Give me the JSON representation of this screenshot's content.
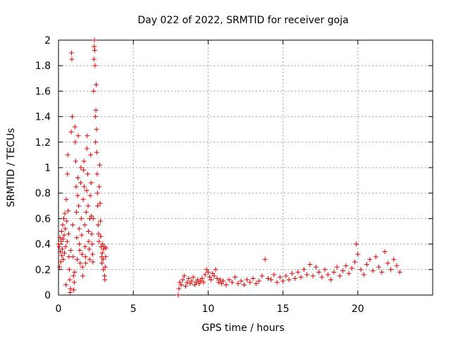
{
  "chart_data": {
    "type": "scatter",
    "title": "Day 022 of 2022, SRMTID for receiver goja",
    "xlabel": "GPS time / hours",
    "ylabel": "SRMTID / TECUs",
    "xlim": [
      0,
      25
    ],
    "ylim": [
      0,
      2
    ],
    "xticks": [
      0,
      5,
      10,
      15,
      20
    ],
    "yticks": [
      0,
      0.2,
      0.4,
      0.6,
      0.8,
      1,
      1.2,
      1.4,
      1.6,
      1.8,
      2
    ],
    "xtick_labels": [
      "0",
      "5",
      "10",
      "15",
      "20"
    ],
    "ytick_labels": [
      "0",
      "0.2",
      "0.4",
      "0.6",
      "0.8",
      "1",
      "1.2",
      "1.4",
      "1.6",
      "1.8",
      "2"
    ],
    "grid": true,
    "marker": "+",
    "color": "#e00000",
    "series": [
      {
        "name": "SRMTID",
        "points": [
          [
            0.0,
            0.4
          ],
          [
            0.05,
            0.38
          ],
          [
            0.08,
            0.22
          ],
          [
            0.1,
            0.45
          ],
          [
            0.12,
            0.34
          ],
          [
            0.15,
            0.26
          ],
          [
            0.18,
            0.42
          ],
          [
            0.2,
            0.5
          ],
          [
            0.22,
            0.31
          ],
          [
            0.25,
            0.36
          ],
          [
            0.28,
            0.55
          ],
          [
            0.3,
            0.44
          ],
          [
            0.32,
            0.28
          ],
          [
            0.35,
            0.6
          ],
          [
            0.38,
            0.47
          ],
          [
            0.4,
            0.33
          ],
          [
            0.42,
            0.64
          ],
          [
            0.45,
            0.52
          ],
          [
            0.48,
            0.38
          ],
          [
            0.5,
            0.08
          ],
          [
            0.52,
            0.75
          ],
          [
            0.55,
            0.58
          ],
          [
            0.58,
            0.42
          ],
          [
            0.6,
            0.95
          ],
          [
            0.62,
            1.1
          ],
          [
            0.65,
            0.66
          ],
          [
            0.68,
            0.48
          ],
          [
            0.7,
            0.3
          ],
          [
            0.72,
            0.2
          ],
          [
            0.75,
            0.12
          ],
          [
            0.78,
            0.02
          ],
          [
            0.8,
            0.05
          ],
          [
            0.82,
            0.35
          ],
          [
            0.85,
            1.28
          ],
          [
            0.87,
            1.9
          ],
          [
            0.89,
            1.85
          ],
          [
            0.92,
            1.4
          ],
          [
            0.95,
            0.55
          ],
          [
            0.98,
            0.3
          ],
          [
            1.0,
            0.15
          ],
          [
            1.02,
            0.04
          ],
          [
            1.05,
            0.1
          ],
          [
            1.08,
            0.18
          ],
          [
            1.1,
            1.32
          ],
          [
            1.12,
            1.2
          ],
          [
            1.15,
            1.05
          ],
          [
            1.18,
            0.85
          ],
          [
            1.2,
            0.65
          ],
          [
            1.22,
            0.45
          ],
          [
            1.25,
            0.28
          ],
          [
            1.28,
            0.78
          ],
          [
            1.3,
            0.92
          ],
          [
            1.32,
            1.25
          ],
          [
            1.35,
            0.7
          ],
          [
            1.38,
            0.52
          ],
          [
            1.4,
            0.4
          ],
          [
            1.42,
            0.35
          ],
          [
            1.45,
            0.25
          ],
          [
            1.48,
            0.88
          ],
          [
            1.5,
            1.0
          ],
          [
            1.52,
            0.6
          ],
          [
            1.55,
            0.47
          ],
          [
            1.58,
            0.32
          ],
          [
            1.6,
            0.22
          ],
          [
            1.62,
            0.15
          ],
          [
            1.65,
            0.75
          ],
          [
            1.68,
            0.98
          ],
          [
            1.7,
            1.05
          ],
          [
            1.72,
            0.85
          ],
          [
            1.75,
            0.55
          ],
          [
            1.78,
            0.38
          ],
          [
            1.8,
            0.3
          ],
          [
            1.82,
            0.25
          ],
          [
            1.85,
            0.65
          ],
          [
            1.88,
            0.82
          ],
          [
            1.9,
            1.15
          ],
          [
            1.92,
            1.25
          ],
          [
            1.95,
            0.95
          ],
          [
            1.98,
            0.7
          ],
          [
            2.0,
            0.5
          ],
          [
            2.02,
            0.42
          ],
          [
            2.05,
            0.36
          ],
          [
            2.08,
            0.28
          ],
          [
            2.1,
            0.6
          ],
          [
            2.12,
            0.78
          ],
          [
            2.15,
            1.1
          ],
          [
            2.18,
            0.88
          ],
          [
            2.2,
            0.62
          ],
          [
            2.22,
            0.48
          ],
          [
            2.25,
            0.4
          ],
          [
            2.28,
            0.32
          ],
          [
            2.3,
            0.26
          ],
          [
            2.32,
            0.6
          ],
          [
            2.35,
            1.6
          ],
          [
            2.37,
            1.85
          ],
          [
            2.39,
            1.95
          ],
          [
            2.4,
            2.0
          ],
          [
            2.42,
            1.92
          ],
          [
            2.44,
            1.8
          ],
          [
            2.46,
            1.4
          ],
          [
            2.48,
            1.2
          ],
          [
            2.5,
            1.45
          ],
          [
            2.52,
            1.65
          ],
          [
            2.54,
            1.3
          ],
          [
            2.56,
            1.12
          ],
          [
            2.58,
            0.95
          ],
          [
            2.6,
            0.8
          ],
          [
            2.62,
            0.7
          ],
          [
            2.65,
            0.55
          ],
          [
            2.68,
            0.48
          ],
          [
            2.7,
            0.42
          ],
          [
            2.72,
            0.85
          ],
          [
            2.75,
            1.02
          ],
          [
            2.78,
            0.72
          ],
          [
            2.8,
            0.58
          ],
          [
            2.82,
            0.46
          ],
          [
            2.85,
            0.38
          ],
          [
            2.88,
            0.3
          ],
          [
            2.9,
            0.25
          ],
          [
            2.92,
            0.33
          ],
          [
            2.95,
            0.4
          ],
          [
            2.98,
            0.28
          ],
          [
            3.0,
            0.2
          ],
          [
            3.02,
            0.36
          ],
          [
            3.05,
            0.38
          ],
          [
            3.08,
            0.15
          ],
          [
            3.1,
            0.12
          ],
          [
            3.12,
            0.22
          ],
          [
            3.15,
            0.3
          ],
          [
            3.18,
            0.37
          ],
          [
            8.0,
            0.0
          ],
          [
            8.05,
            0.05
          ],
          [
            8.1,
            0.1
          ],
          [
            8.2,
            0.08
          ],
          [
            8.3,
            0.12
          ],
          [
            8.4,
            0.15
          ],
          [
            8.5,
            0.07
          ],
          [
            8.6,
            0.1
          ],
          [
            8.7,
            0.13
          ],
          [
            8.8,
            0.09
          ],
          [
            8.9,
            0.11
          ],
          [
            9.0,
            0.14
          ],
          [
            9.1,
            0.08
          ],
          [
            9.2,
            0.1
          ],
          [
            9.3,
            0.12
          ],
          [
            9.4,
            0.09
          ],
          [
            9.5,
            0.11
          ],
          [
            9.6,
            0.13
          ],
          [
            9.7,
            0.1
          ],
          [
            9.8,
            0.16
          ],
          [
            9.9,
            0.2
          ],
          [
            10.0,
            0.18
          ],
          [
            10.1,
            0.14
          ],
          [
            10.2,
            0.12
          ],
          [
            10.3,
            0.17
          ],
          [
            10.4,
            0.15
          ],
          [
            10.5,
            0.2
          ],
          [
            10.6,
            0.13
          ],
          [
            10.7,
            0.1
          ],
          [
            10.8,
            0.12
          ],
          [
            10.9,
            0.09
          ],
          [
            11.0,
            0.11
          ],
          [
            11.2,
            0.08
          ],
          [
            11.4,
            0.12
          ],
          [
            11.6,
            0.1
          ],
          [
            11.8,
            0.14
          ],
          [
            12.0,
            0.09
          ],
          [
            12.2,
            0.11
          ],
          [
            12.4,
            0.08
          ],
          [
            12.6,
            0.12
          ],
          [
            12.8,
            0.1
          ],
          [
            13.0,
            0.13
          ],
          [
            13.2,
            0.09
          ],
          [
            13.4,
            0.11
          ],
          [
            13.6,
            0.15
          ],
          [
            13.8,
            0.28
          ],
          [
            14.0,
            0.13
          ],
          [
            14.2,
            0.12
          ],
          [
            14.4,
            0.16
          ],
          [
            14.6,
            0.1
          ],
          [
            14.8,
            0.14
          ],
          [
            15.0,
            0.11
          ],
          [
            15.2,
            0.15
          ],
          [
            15.4,
            0.12
          ],
          [
            15.6,
            0.17
          ],
          [
            15.8,
            0.13
          ],
          [
            16.0,
            0.18
          ],
          [
            16.2,
            0.14
          ],
          [
            16.4,
            0.2
          ],
          [
            16.6,
            0.16
          ],
          [
            16.8,
            0.24
          ],
          [
            17.0,
            0.15
          ],
          [
            17.2,
            0.22
          ],
          [
            17.4,
            0.18
          ],
          [
            17.6,
            0.14
          ],
          [
            17.8,
            0.2
          ],
          [
            18.0,
            0.16
          ],
          [
            18.2,
            0.12
          ],
          [
            18.4,
            0.18
          ],
          [
            18.6,
            0.22
          ],
          [
            18.8,
            0.15
          ],
          [
            19.0,
            0.19
          ],
          [
            19.2,
            0.23
          ],
          [
            19.4,
            0.17
          ],
          [
            19.6,
            0.21
          ],
          [
            19.8,
            0.26
          ],
          [
            19.9,
            0.4
          ],
          [
            20.0,
            0.32
          ],
          [
            20.2,
            0.2
          ],
          [
            20.4,
            0.16
          ],
          [
            20.6,
            0.24
          ],
          [
            20.8,
            0.28
          ],
          [
            21.0,
            0.19
          ],
          [
            21.2,
            0.3
          ],
          [
            21.4,
            0.22
          ],
          [
            21.6,
            0.18
          ],
          [
            21.8,
            0.34
          ],
          [
            22.0,
            0.25
          ],
          [
            22.2,
            0.2
          ],
          [
            22.4,
            0.28
          ],
          [
            22.6,
            0.23
          ],
          [
            22.8,
            0.18
          ]
        ]
      }
    ]
  }
}
